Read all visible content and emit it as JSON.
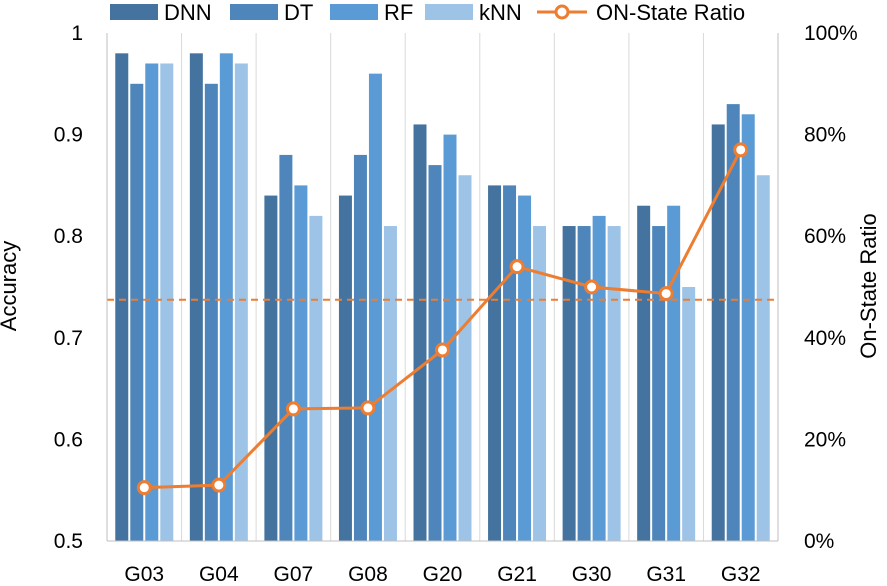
{
  "chart_data": {
    "type": "bar",
    "categories": [
      "G03",
      "G04",
      "G07",
      "G08",
      "G20",
      "G21",
      "G30",
      "G31",
      "G32"
    ],
    "series": [
      {
        "name": "DNN",
        "color": "#44739f",
        "values": [
          0.98,
          0.98,
          0.84,
          0.84,
          0.91,
          0.85,
          0.81,
          0.83,
          0.91
        ]
      },
      {
        "name": "DT",
        "color": "#4e86bb",
        "values": [
          0.95,
          0.95,
          0.88,
          0.88,
          0.87,
          0.85,
          0.81,
          0.81,
          0.93
        ]
      },
      {
        "name": "RF",
        "color": "#5b9bd5",
        "values": [
          0.97,
          0.98,
          0.85,
          0.96,
          0.9,
          0.84,
          0.82,
          0.83,
          0.92
        ]
      },
      {
        "name": "kNN",
        "color": "#9dc3e6",
        "values": [
          0.97,
          0.97,
          0.82,
          0.81,
          0.86,
          0.81,
          0.81,
          0.75,
          0.86
        ]
      }
    ],
    "line_series": {
      "name": "ON-State Ratio",
      "color": "#ed7d31",
      "axis": "right",
      "values": [
        0.105,
        0.11,
        0.26,
        0.262,
        0.376,
        0.54,
        0.5,
        0.487,
        0.77
      ]
    },
    "reference_line": {
      "axis": "right",
      "value": 0.475,
      "color": "#ed7d31",
      "style": "dashed"
    },
    "ylabel": "Accuracy",
    "ylim": [
      0.5,
      1.0
    ],
    "yticks": [
      "0.5",
      "0.6",
      "0.7",
      "0.8",
      "0.9",
      "1"
    ],
    "y2label": "On-State Ratio",
    "y2lim": [
      0,
      1
    ],
    "y2ticks": [
      "0%",
      "20%",
      "40%",
      "60%",
      "80%",
      "100%"
    ],
    "grid": "vertical",
    "legend_position": "top"
  }
}
